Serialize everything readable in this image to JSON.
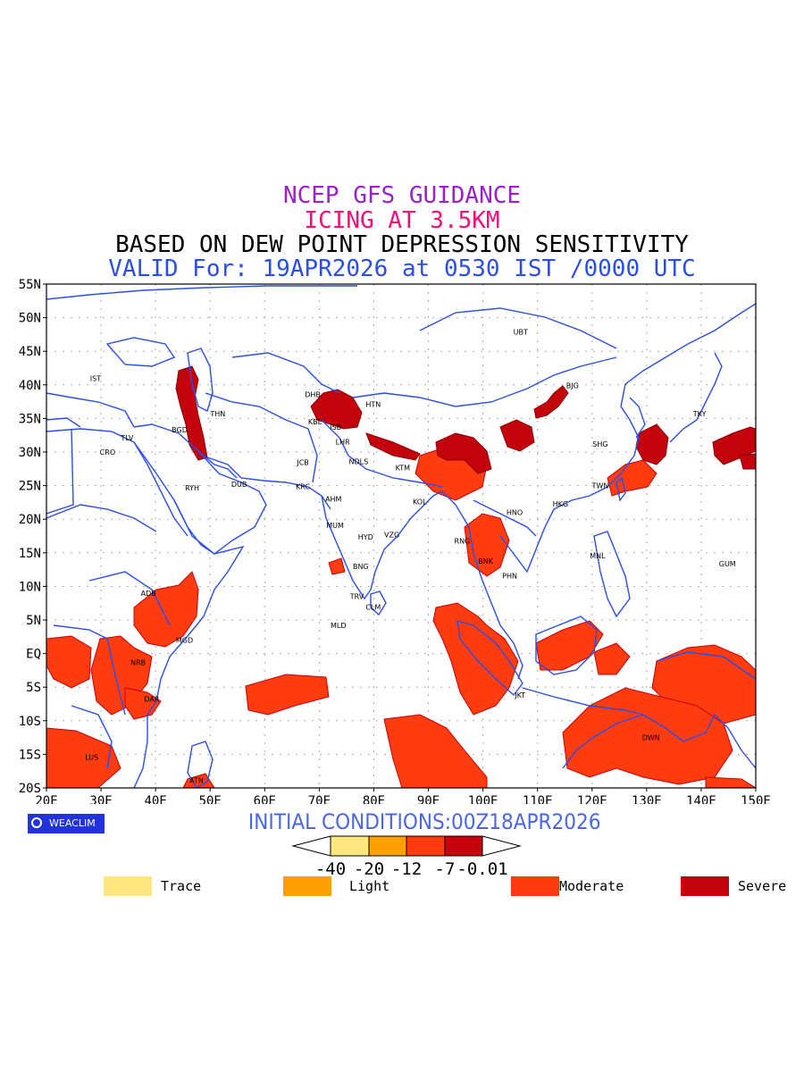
{
  "titles": {
    "line1": "NCEP GFS GUIDANCE",
    "line2": "ICING AT 3.5KM",
    "line3": "BASED ON DEW POINT DEPRESSION SENSITIVITY",
    "line4": "VALID For: 19APR2026 at 0530 IST /0000 UTC"
  },
  "colors": {
    "line1": "#9922cc",
    "line2": "#ee1177",
    "line3": "#000000",
    "line4": "#2a4ee8",
    "coast": "#2b4ee8",
    "moderate": "#ff3b10",
    "severe": "#c4040c"
  },
  "map": {
    "lat_ticks": [
      "55N",
      "50N",
      "45N",
      "40N",
      "35N",
      "30N",
      "25N",
      "20N",
      "15N",
      "10N",
      "5N",
      "EQ",
      "5S",
      "10S",
      "15S",
      "20S"
    ],
    "lon_ticks": [
      "20E",
      "30E",
      "40E",
      "50E",
      "60E",
      "70E",
      "80E",
      "90E",
      "100E",
      "110E",
      "120E",
      "130E",
      "140E",
      "150E"
    ],
    "stations": [
      {
        "code": "UBT",
        "lon": 106.9,
        "lat": 47.9
      },
      {
        "code": "BJG",
        "lon": 116.4,
        "lat": 39.9
      },
      {
        "code": "TKY",
        "lon": 139.7,
        "lat": 35.7
      },
      {
        "code": "SHG",
        "lon": 121.5,
        "lat": 31.2
      },
      {
        "code": "TWN",
        "lon": 121.5,
        "lat": 25.0
      },
      {
        "code": "HKG",
        "lon": 114.2,
        "lat": 22.3
      },
      {
        "code": "HNO",
        "lon": 105.8,
        "lat": 21.0
      },
      {
        "code": "MNL",
        "lon": 121.0,
        "lat": 14.6
      },
      {
        "code": "GUM",
        "lon": 144.8,
        "lat": 13.4
      },
      {
        "code": "IST",
        "lon": 29.0,
        "lat": 41.0
      },
      {
        "code": "TLV",
        "lon": 34.8,
        "lat": 32.1
      },
      {
        "code": "CRO",
        "lon": 31.2,
        "lat": 30.0
      },
      {
        "code": "BGD",
        "lon": 44.4,
        "lat": 33.3
      },
      {
        "code": "THN",
        "lon": 51.4,
        "lat": 35.7
      },
      {
        "code": "RYH",
        "lon": 46.7,
        "lat": 24.7
      },
      {
        "code": "DUB",
        "lon": 55.3,
        "lat": 25.2
      },
      {
        "code": "DHB",
        "lon": 68.8,
        "lat": 38.6
      },
      {
        "code": "KBL",
        "lon": 69.2,
        "lat": 34.5
      },
      {
        "code": "ISB",
        "lon": 73.0,
        "lat": 33.7
      },
      {
        "code": "HTN",
        "lon": 79.9,
        "lat": 37.1
      },
      {
        "code": "LHR",
        "lon": 74.3,
        "lat": 31.5
      },
      {
        "code": "JCB",
        "lon": 67.0,
        "lat": 28.5
      },
      {
        "code": "NDLS",
        "lon": 77.2,
        "lat": 28.6
      },
      {
        "code": "KTM",
        "lon": 85.3,
        "lat": 27.7
      },
      {
        "code": "KRC",
        "lon": 67.0,
        "lat": 24.9
      },
      {
        "code": "AHM",
        "lon": 72.6,
        "lat": 23.0
      },
      {
        "code": "KOL",
        "lon": 88.4,
        "lat": 22.6
      },
      {
        "code": "MUM",
        "lon": 72.9,
        "lat": 19.1
      },
      {
        "code": "HYD",
        "lon": 78.5,
        "lat": 17.4
      },
      {
        "code": "VZG",
        "lon": 83.3,
        "lat": 17.7
      },
      {
        "code": "RNG",
        "lon": 96.2,
        "lat": 16.8
      },
      {
        "code": "BNK",
        "lon": 100.5,
        "lat": 13.8
      },
      {
        "code": "PHN",
        "lon": 104.9,
        "lat": 11.6
      },
      {
        "code": "BNG",
        "lon": 77.6,
        "lat": 13.0
      },
      {
        "code": "TRV",
        "lon": 76.9,
        "lat": 8.5
      },
      {
        "code": "CLM",
        "lon": 79.9,
        "lat": 6.9
      },
      {
        "code": "MLD",
        "lon": 73.5,
        "lat": 4.2
      },
      {
        "code": "ADB",
        "lon": 38.7,
        "lat": 9.0
      },
      {
        "code": "MGD",
        "lon": 45.3,
        "lat": 2.0
      },
      {
        "code": "NRB",
        "lon": 36.8,
        "lat": -1.3
      },
      {
        "code": "DAR",
        "lon": 39.3,
        "lat": -6.8
      },
      {
        "code": "JKT",
        "lon": 106.8,
        "lat": -6.2
      },
      {
        "code": "DWN",
        "lon": 130.8,
        "lat": -12.5
      },
      {
        "code": "LUS",
        "lon": 28.3,
        "lat": -15.4
      },
      {
        "code": "ATN",
        "lon": 47.5,
        "lat": -18.9
      }
    ]
  },
  "badge": {
    "label": "WEACLIM",
    "icon": "copyright-circle-icon"
  },
  "initial_conditions": "INITIAL CONDITIONS:00Z18APR2026",
  "colorbar": {
    "labels": [
      "-40",
      "-20",
      "-12",
      "-7",
      "-0.01"
    ],
    "colors": [
      "#ffe680",
      "#ffa000",
      "#ff3b10",
      "#c4040c"
    ]
  },
  "legend": [
    {
      "label": "Trace",
      "color": "#ffe680"
    },
    {
      "label": "Light",
      "color": "#ffa000"
    },
    {
      "label": "Moderate",
      "color": "#ff3b10"
    },
    {
      "label": "Severe",
      "color": "#c4040c"
    }
  ]
}
